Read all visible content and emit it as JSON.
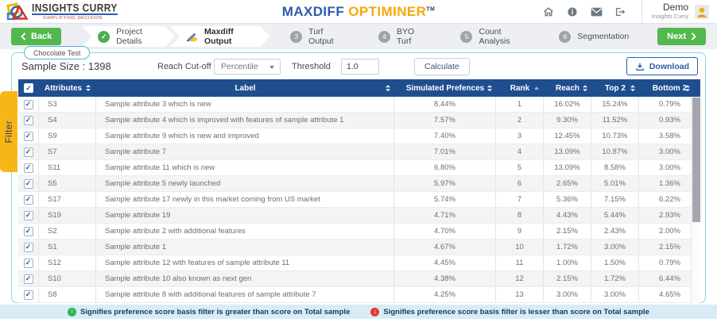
{
  "header": {
    "logo_title": "INSIGHTS CURRY",
    "logo_tagline": "SIMPLIFYING DECISION",
    "app_title_primary": "MAXDIFF",
    "app_title_secondary": "OPTIMINER",
    "app_title_tm": "TM",
    "user_name": "Demo",
    "user_org": "Insights Curry"
  },
  "stepbar": {
    "back_label": "Back",
    "next_label": "Next",
    "steps": [
      {
        "label": "Project Details"
      },
      {
        "label": "Maxdiff Output"
      },
      {
        "number": "3",
        "label": "Turf Output"
      },
      {
        "number": "4",
        "label": "BYO Turf"
      },
      {
        "number": "5",
        "label": "Count Analysis"
      },
      {
        "number": "6",
        "label": "Segmentation"
      }
    ]
  },
  "panel": {
    "project_tab": "Chocolate Test",
    "sample_size": "Sample Size : 1398",
    "reach_cutoff_label": "Reach Cut-off",
    "reach_cutoff_value": "Percentile",
    "threshold_label": "Threshold",
    "threshold_value": "1.0",
    "calculate_label": "Calculate",
    "download_label": "Download",
    "filter_tab": "Filter"
  },
  "table": {
    "columns": {
      "attributes": "Attributes",
      "label": "Label",
      "simulated": "Simulated Prefences",
      "rank": "Rank",
      "reach": "Reach",
      "top2": "Top 2",
      "bottom2": "Bottom 2"
    },
    "rows": [
      {
        "attribute": "S3",
        "label": "Sample attribute 3 which is new",
        "simulated": "8.44%",
        "rank": "1",
        "reach": "16.02%",
        "top2": "15.24%",
        "bottom2": "0.79%"
      },
      {
        "attribute": "S4",
        "label": "Sample attribute 4 which is improved with features of sample attribute 1",
        "simulated": "7.57%",
        "rank": "2",
        "reach": "9.30%",
        "top2": "11.52%",
        "bottom2": "0.93%"
      },
      {
        "attribute": "S9",
        "label": "Sample attribute 9 which is new and improved",
        "simulated": "7.40%",
        "rank": "3",
        "reach": "12.45%",
        "top2": "10.73%",
        "bottom2": "3.58%"
      },
      {
        "attribute": "S7",
        "label": "Sample attribute 7",
        "simulated": "7.01%",
        "rank": "4",
        "reach": "13.09%",
        "top2": "10.87%",
        "bottom2": "3.00%"
      },
      {
        "attribute": "S11",
        "label": "Sample attribute 11 which is new",
        "simulated": "6.80%",
        "rank": "5",
        "reach": "13.09%",
        "top2": "8.58%",
        "bottom2": "3.00%"
      },
      {
        "attribute": "S5",
        "label": "Sample attribute 5 newly launched",
        "simulated": "5.97%",
        "rank": "6",
        "reach": "2.65%",
        "top2": "5.01%",
        "bottom2": "1.36%"
      },
      {
        "attribute": "S17",
        "label": "Sample attribute 17 newly in this market coming from US market",
        "simulated": "5.74%",
        "rank": "7",
        "reach": "5.36%",
        "top2": "7.15%",
        "bottom2": "6.22%"
      },
      {
        "attribute": "S19",
        "label": "Sample attribute 19",
        "simulated": "4.71%",
        "rank": "8",
        "reach": "4.43%",
        "top2": "5.44%",
        "bottom2": "2.93%"
      },
      {
        "attribute": "S2",
        "label": "Sample attribute 2 with additional features",
        "simulated": "4.70%",
        "rank": "9",
        "reach": "2.15%",
        "top2": "2.43%",
        "bottom2": "2.00%"
      },
      {
        "attribute": "S1",
        "label": "Sample attribute 1",
        "simulated": "4.67%",
        "rank": "10",
        "reach": "1.72%",
        "top2": "3.00%",
        "bottom2": "2.15%"
      },
      {
        "attribute": "S12",
        "label": "Sample attribute 12 with features of sample attribute 11",
        "simulated": "4.45%",
        "rank": "11",
        "reach": "1.00%",
        "top2": "1.50%",
        "bottom2": "0.79%"
      },
      {
        "attribute": "S10",
        "label": "Sample attribute 10 also known as next gen",
        "simulated": "4.38%",
        "rank": "12",
        "reach": "2.15%",
        "top2": "1.72%",
        "bottom2": "6.44%"
      },
      {
        "attribute": "S8",
        "label": "Sample attribute 8 with additional features of sample attribute 7",
        "simulated": "4.25%",
        "rank": "13",
        "reach": "3.00%",
        "top2": "3.00%",
        "bottom2": "4.65%"
      }
    ]
  },
  "footer": {
    "greater_note": "Signifies preference score basis filter is greater than score on Total sample",
    "lesser_note": "Signifies preference score basis filter is lesser than score on Total sample"
  },
  "colors": {
    "table_header_blue": "#1f4e8f",
    "button_green": "#53b84e",
    "filter_yellow": "#f8b616",
    "title_blue": "#2b5cad",
    "title_gold": "#f5a80a",
    "legend_green": "#2fb457",
    "legend_red": "#e23b30"
  }
}
